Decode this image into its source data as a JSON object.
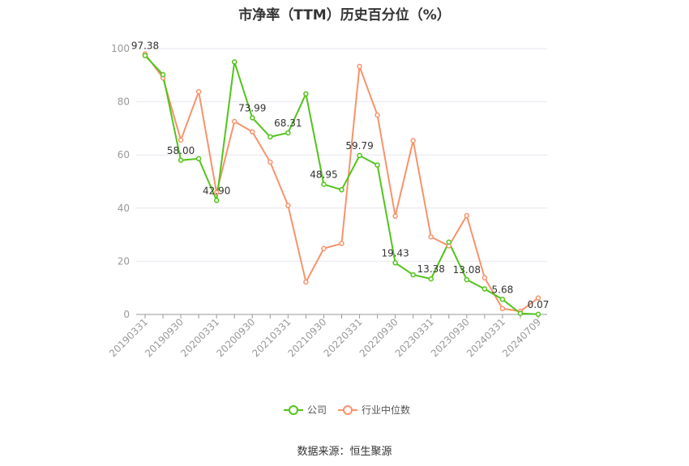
{
  "title": "市净率（TTM）历史百分位（%）",
  "source": "数据来源：恒生聚源",
  "colors": {
    "company": "#52c41a",
    "industry": "#f7936b",
    "grid": "#e6e6ef",
    "axis": "#999999"
  },
  "chart_data": {
    "type": "line",
    "title": "市净率（TTM）历史百分位（%）",
    "ylim": [
      0,
      100
    ],
    "yticks": [
      0,
      20,
      40,
      60,
      80,
      100
    ],
    "x_tick_labels": [
      "20190331",
      "20190930",
      "20200331",
      "20200930",
      "20210331",
      "20210930",
      "20220331",
      "20220930",
      "20230331",
      "20230930",
      "20240331",
      "20240709"
    ],
    "x": [
      "20190331",
      "20190630",
      "20190930",
      "20191231",
      "20200331",
      "20200630",
      "20200930",
      "20201231",
      "20210331",
      "20210630",
      "20210930",
      "20211231",
      "20220331",
      "20220630",
      "20220930",
      "20221231",
      "20230331",
      "20230630",
      "20230930",
      "20231231",
      "20240331",
      "20240630",
      "20240709"
    ],
    "legend_position": "bottom",
    "series": [
      {
        "name": "公司",
        "values": [
          97.38,
          90.2,
          58.0,
          58.6,
          42.9,
          95.0,
          73.99,
          66.8,
          68.31,
          83.0,
          48.95,
          46.9,
          59.79,
          56.2,
          19.43,
          14.9,
          13.38,
          27.2,
          13.08,
          9.6,
          5.68,
          0.4,
          0.07
        ]
      },
      {
        "name": "行业中位数",
        "values": [
          98.0,
          89.0,
          65.6,
          83.8,
          45.8,
          72.6,
          68.7,
          57.3,
          41.0,
          12.2,
          24.8,
          26.7,
          93.3,
          75.0,
          37.0,
          65.4,
          29.2,
          25.8,
          37.2,
          13.8,
          2.2,
          1.2,
          6.2
        ]
      }
    ],
    "data_labels": [
      {
        "series": 0,
        "index": 0,
        "text": "97.38"
      },
      {
        "series": 0,
        "index": 2,
        "text": "58.00"
      },
      {
        "series": 0,
        "index": 4,
        "text": "42.90"
      },
      {
        "series": 0,
        "index": 6,
        "text": "73.99"
      },
      {
        "series": 0,
        "index": 8,
        "text": "68.31"
      },
      {
        "series": 0,
        "index": 10,
        "text": "48.95"
      },
      {
        "series": 0,
        "index": 12,
        "text": "59.79"
      },
      {
        "series": 0,
        "index": 14,
        "text": "19.43"
      },
      {
        "series": 0,
        "index": 16,
        "text": "13.38"
      },
      {
        "series": 0,
        "index": 18,
        "text": "13.08"
      },
      {
        "series": 0,
        "index": 20,
        "text": "5.68"
      },
      {
        "series": 0,
        "index": 22,
        "text": "0.07"
      }
    ]
  }
}
